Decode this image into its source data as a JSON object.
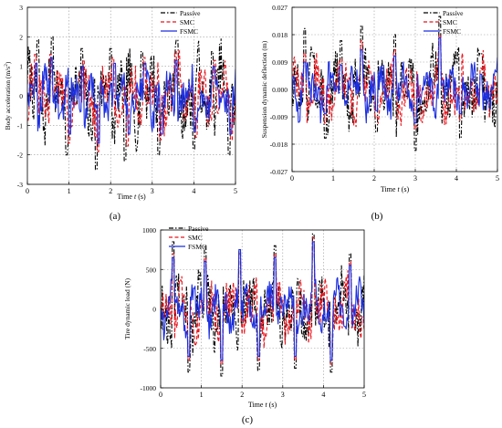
{
  "colors": {
    "passive": "#000000",
    "smc": "#e8141c",
    "fsmc": "#1c2fe0",
    "grid": "#9a9a9a"
  },
  "chart_data": [
    {
      "type": "line",
      "panel_label": "(a)",
      "xlabel_prefix": "Time ",
      "xlabel_var": "t",
      "xlabel_suffix": " (s)",
      "ylabel_prefix": "Body acceleration  (m/s",
      "ylabel_sup": "2",
      "ylabel_suffix": ")",
      "xlim": [
        0,
        5
      ],
      "ylim": [
        -3,
        3
      ],
      "x_ticks": [
        0,
        1,
        2,
        3,
        4,
        5
      ],
      "y_ticks": [
        -3,
        -2,
        -1,
        0,
        1,
        2,
        3
      ],
      "x_tick_labels": [
        "0",
        "1",
        "2",
        "3",
        "4",
        "5"
      ],
      "y_tick_labels": [
        "-3",
        "-2",
        "-1",
        "0",
        "1",
        "2",
        "3"
      ],
      "grid": true,
      "legend_position": "top-right",
      "series_names": [
        "Passive",
        "SMC",
        "FSMC"
      ],
      "peaks": {
        "passive": {
          "x": [
            0.25,
            0.6,
            0.95,
            1.3,
            1.65,
            2.0,
            2.35,
            2.75,
            3.15,
            3.6,
            4.0,
            4.45,
            4.85
          ],
          "y": [
            1.9,
            2.0,
            -2.0,
            1.6,
            -2.5,
            1.6,
            -2.2,
            1.5,
            -2.0,
            1.9,
            -1.8,
            1.5,
            -2.0
          ]
        },
        "smc": {
          "x": [
            0.2,
            0.55,
            1.0,
            1.35,
            1.7,
            2.05,
            2.4,
            2.8,
            3.2,
            3.55,
            4.05,
            4.5,
            4.9
          ],
          "y": [
            1.4,
            1.4,
            -1.6,
            1.2,
            -1.9,
            1.3,
            -1.7,
            1.3,
            -1.5,
            1.5,
            -1.4,
            1.2,
            -1.5
          ]
        },
        "fsmc": {
          "x": [
            0.22,
            0.58,
            1.02,
            1.32,
            1.72,
            2.1,
            2.45,
            2.82,
            3.22,
            3.58,
            4.02,
            4.48,
            4.88
          ],
          "y": [
            1.1,
            1.3,
            -1.3,
            1.0,
            -1.6,
            1.1,
            -1.3,
            1.1,
            -1.3,
            1.2,
            -1.2,
            1.0,
            -1.3
          ]
        }
      }
    },
    {
      "type": "line",
      "panel_label": "(b)",
      "xlabel_prefix": "Time ",
      "xlabel_var": "t",
      "xlabel_suffix": " (s)",
      "ylabel_prefix": "Suspension dynamic deflection  (m)",
      "ylabel_sup": "",
      "ylabel_suffix": "",
      "xlim": [
        0,
        5
      ],
      "ylim": [
        -0.027,
        0.027
      ],
      "x_ticks": [
        0,
        1,
        2,
        3,
        4,
        5
      ],
      "y_ticks": [
        -0.027,
        -0.018,
        -0.009,
        0,
        0.009,
        0.018,
        0.027
      ],
      "x_tick_labels": [
        "0",
        "1",
        "2",
        "3",
        "4",
        "5"
      ],
      "y_tick_labels": [
        "-0.027",
        "-0.018",
        "-0.009",
        "0.000",
        "0.009",
        "0.018",
        "0.027"
      ],
      "grid": true,
      "legend_position": "top-right",
      "series_names": [
        "Passive",
        "SMC",
        "FSMC"
      ],
      "peaks": {
        "passive": {
          "x": [
            0.3,
            0.8,
            1.2,
            1.7,
            2.05,
            2.5,
            3.0,
            3.6,
            4.1,
            4.6
          ],
          "y": [
            0.02,
            -0.016,
            0.016,
            0.021,
            -0.014,
            0.018,
            -0.02,
            0.024,
            -0.016,
            0.012
          ]
        },
        "smc": {
          "x": [
            0.3,
            0.8,
            1.2,
            1.7,
            2.05,
            2.5,
            3.0,
            3.6,
            4.1,
            4.6
          ],
          "y": [
            0.012,
            -0.011,
            0.01,
            0.016,
            -0.009,
            0.013,
            -0.013,
            0.018,
            -0.01,
            0.007
          ]
        },
        "fsmc": {
          "x": [
            0.3,
            0.8,
            1.2,
            1.7,
            2.05,
            2.5,
            3.0,
            3.6,
            4.1,
            4.6
          ],
          "y": [
            0.009,
            -0.008,
            0.008,
            0.013,
            -0.007,
            0.011,
            -0.011,
            0.017,
            -0.008,
            0.005
          ]
        }
      }
    },
    {
      "type": "line",
      "panel_label": "(c)",
      "xlabel_prefix": "Time ",
      "xlabel_var": "t",
      "xlabel_suffix": " (s)",
      "ylabel_prefix": "Tire dynamic load (N)",
      "ylabel_sup": "",
      "ylabel_suffix": "",
      "xlim": [
        0,
        5
      ],
      "ylim": [
        -1000,
        1000
      ],
      "x_ticks": [
        0,
        1,
        2,
        3,
        4,
        5
      ],
      "y_ticks": [
        -1000,
        -500,
        0,
        500,
        1000
      ],
      "x_tick_labels": [
        "0",
        "1",
        "2",
        "3",
        "4",
        "5"
      ],
      "y_tick_labels": [
        "-1000",
        "-500",
        "0",
        "500",
        "1000"
      ],
      "grid": true,
      "legend_position": "top-left",
      "series_names": [
        "Passive",
        "SMC",
        "FSMC"
      ],
      "peaks": {
        "passive": {
          "x": [
            0.3,
            0.7,
            1.1,
            1.5,
            1.95,
            2.4,
            2.8,
            3.3,
            3.75,
            4.2,
            4.65
          ],
          "y": [
            850,
            -800,
            800,
            -850,
            750,
            -780,
            800,
            -750,
            950,
            -800,
            700
          ]
        },
        "smc": {
          "x": [
            0.3,
            0.7,
            1.1,
            1.5,
            1.95,
            2.4,
            2.8,
            3.3,
            3.75,
            4.2,
            4.65
          ],
          "y": [
            700,
            -650,
            650,
            -700,
            700,
            -650,
            700,
            -650,
            900,
            -700,
            600
          ]
        },
        "fsmc": {
          "x": [
            0.3,
            0.7,
            1.1,
            1.5,
            1.95,
            2.4,
            2.8,
            3.3,
            3.75,
            4.2,
            4.65
          ],
          "y": [
            650,
            -600,
            600,
            -650,
            750,
            -600,
            650,
            -600,
            850,
            -650,
            550
          ]
        }
      }
    }
  ]
}
